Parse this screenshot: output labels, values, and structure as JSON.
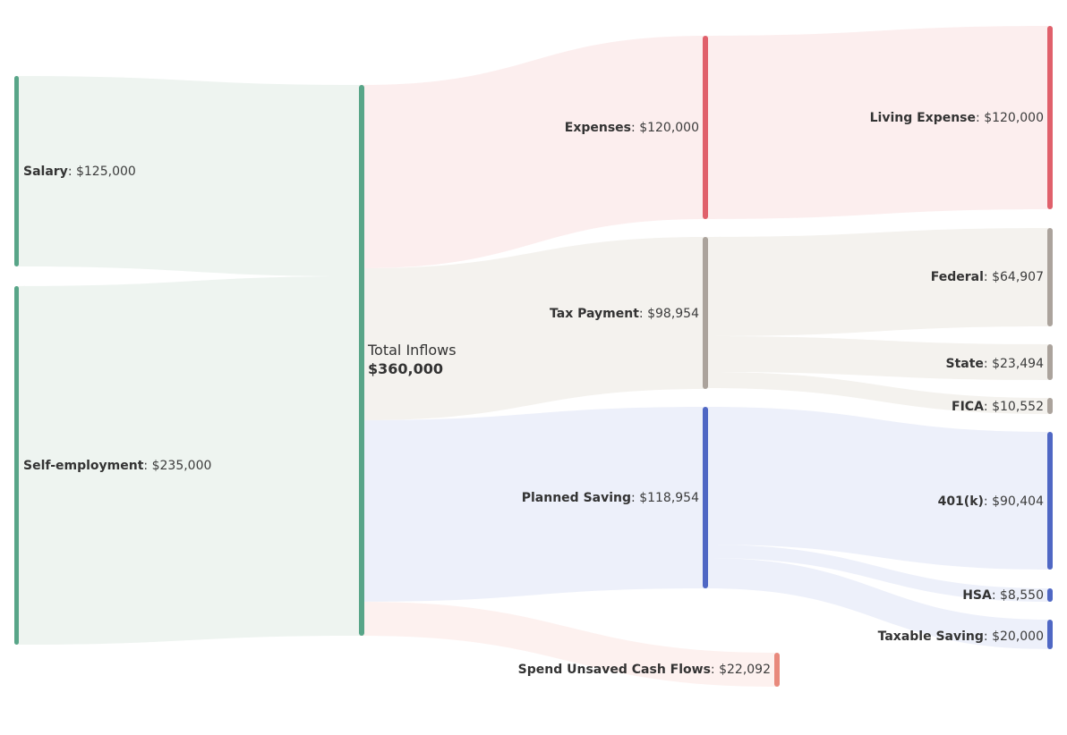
{
  "diagram": {
    "type": "sankey",
    "colors": {
      "income": "#58a588",
      "expenses": "#e0606b",
      "tax": "#aba39c",
      "saving": "#4f67c4",
      "unsaved": "#e8897c",
      "flow_income": "#eef4f0",
      "flow_expenses": "#fceeee",
      "flow_tax": "#f4f2ee",
      "flow_saving": "#edf0fa",
      "flow_unsaved": "#fdf1ef"
    },
    "total": {
      "title": "Total Inflows",
      "value": "$360,000"
    },
    "nodes": {
      "salary": {
        "name": "Salary",
        "value": "$125,000"
      },
      "self_employment": {
        "name": "Self-employment",
        "value": "$235,000"
      },
      "expenses": {
        "name": "Expenses",
        "value": "$120,000"
      },
      "tax_payment": {
        "name": "Tax Payment",
        "value": "$98,954"
      },
      "planned_saving": {
        "name": "Planned Saving",
        "value": "$118,954"
      },
      "spend_unsaved": {
        "name": "Spend Unsaved Cash Flows",
        "value": "$22,092"
      },
      "living_expense": {
        "name": "Living Expense",
        "value": "$120,000"
      },
      "federal": {
        "name": "Federal",
        "value": "$64,907"
      },
      "state": {
        "name": "State",
        "value": "$23,494"
      },
      "fica": {
        "name": "FICA",
        "value": "$10,552"
      },
      "k401": {
        "name": "401(k)",
        "value": "$90,404"
      },
      "hsa": {
        "name": "HSA",
        "value": "$8,550"
      },
      "taxable_saving": {
        "name": "Taxable Saving",
        "value": "$20,000"
      }
    },
    "flows": [
      {
        "from": "salary",
        "to": "total",
        "amount": 125000
      },
      {
        "from": "self_employment",
        "to": "total",
        "amount": 235000
      },
      {
        "from": "total",
        "to": "expenses",
        "amount": 120000
      },
      {
        "from": "total",
        "to": "tax_payment",
        "amount": 98954
      },
      {
        "from": "total",
        "to": "planned_saving",
        "amount": 118954
      },
      {
        "from": "total",
        "to": "spend_unsaved",
        "amount": 22092
      },
      {
        "from": "expenses",
        "to": "living_expense",
        "amount": 120000
      },
      {
        "from": "tax_payment",
        "to": "federal",
        "amount": 64907
      },
      {
        "from": "tax_payment",
        "to": "state",
        "amount": 23494
      },
      {
        "from": "tax_payment",
        "to": "fica",
        "amount": 10552
      },
      {
        "from": "planned_saving",
        "to": "k401",
        "amount": 90404
      },
      {
        "from": "planned_saving",
        "to": "hsa",
        "amount": 8550
      },
      {
        "from": "planned_saving",
        "to": "taxable_saving",
        "amount": 20000
      }
    ]
  }
}
